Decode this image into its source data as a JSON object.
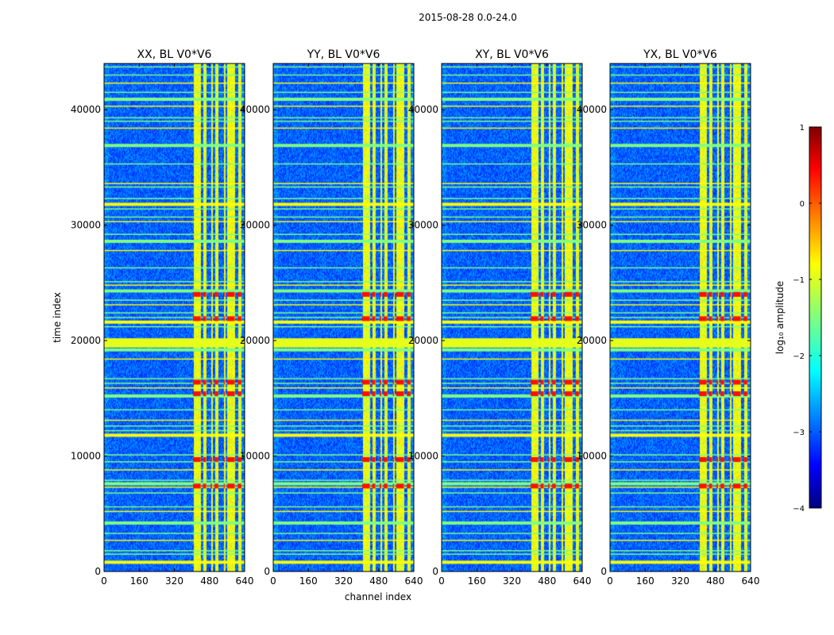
{
  "figure": {
    "suptitle": "2015-08-28 0.0-24.0"
  },
  "chart_data": {
    "type": "heatmap",
    "title": "2015-08-28 0.0-24.0",
    "xlabel": "channel index",
    "ylabel": "time index",
    "xlim": [
      0,
      640
    ],
    "ylim": [
      0,
      44000
    ],
    "xticks": [
      0,
      160,
      320,
      480,
      640
    ],
    "yticks": [
      0,
      10000,
      20000,
      30000,
      40000
    ],
    "panels": [
      {
        "name": "XX",
        "title": "XX, BL V0*V6"
      },
      {
        "name": "YY",
        "title": "YY, BL V0*V6"
      },
      {
        "name": "XY",
        "title": "XY, BL V0*V6"
      },
      {
        "name": "YX",
        "title": "YX, BL V0*V6"
      }
    ],
    "colorbar": {
      "label": "log₁₀ amplitude",
      "range": [
        -4,
        1
      ],
      "ticks": [
        1,
        0,
        -1,
        -2,
        -3,
        -4
      ],
      "tick_labels": [
        "1",
        "0",
        "−1",
        "−2",
        "−3",
        "−4"
      ],
      "colormap": "jet"
    },
    "bright_channel_bands": [
      [
        405,
        440
      ],
      [
        450,
        465
      ],
      [
        485,
        492
      ],
      [
        503,
        520
      ],
      [
        545,
        550
      ],
      [
        560,
        595
      ],
      [
        608,
        625
      ]
    ],
    "rfi_time_rows": [
      800,
      1500,
      1800,
      2700,
      3300,
      4200,
      5200,
      5600,
      6800,
      7300,
      7600,
      7900,
      8800,
      9500,
      10100,
      11800,
      12200,
      12600,
      13100,
      14000,
      15200,
      15900,
      16300,
      16700,
      18400,
      19200,
      19500,
      19800,
      20100,
      21200,
      21600,
      22000,
      22400,
      23100,
      23500,
      24300,
      24800,
      25100,
      26300,
      27800,
      28600,
      29200,
      30300,
      30700,
      31400,
      31800,
      32300,
      33300,
      33600,
      35300,
      36900,
      38400,
      39000,
      39300,
      40300,
      40900,
      41500,
      42300,
      43000,
      43700
    ],
    "hot_time_rows": [
      7400,
      9700,
      15400,
      16400,
      21900,
      24000
    ]
  }
}
